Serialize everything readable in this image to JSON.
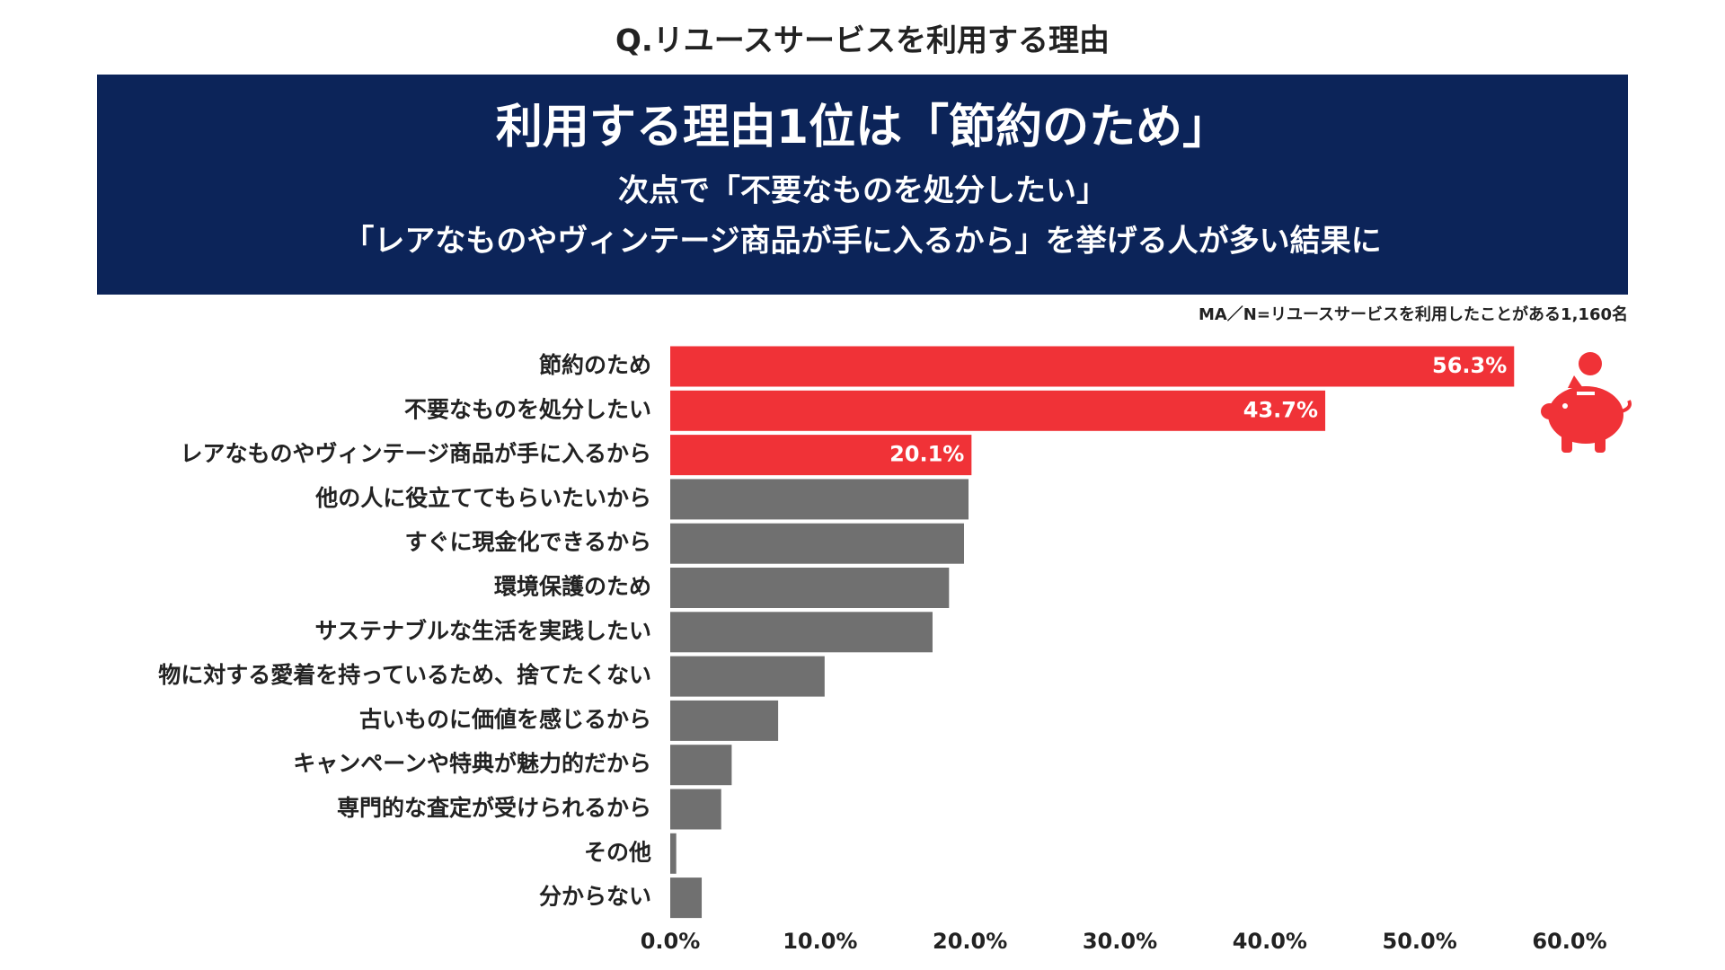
{
  "chart_data": {
    "type": "bar",
    "orientation": "horizontal",
    "title": "Q.リユースサービスを利用する理由",
    "headline": "利用する理由1位は「節約のため」",
    "subheadlines": [
      "次点で「不要なものを処分したい」",
      "「レアなものやヴィンテージ商品が手に入るから」を挙げる人が多い結果に"
    ],
    "note": "MA／N=リユースサービスを利用したことがある1,160名",
    "categories": [
      "節約のため",
      "不要なものを処分したい",
      "レアなものやヴィンテージ商品が手に入るから",
      "他の人に役立ててもらいたいから",
      "すぐに現金化できるから",
      "環境保護のため",
      "サステナブルな生活を実践したい",
      "物に対する愛着を持っているため、捨てたくない",
      "古いものに価値を感じるから",
      "キャンペーンや特典が魅力的だから",
      "専門的な査定が受けられるから",
      "その他",
      "分からない"
    ],
    "values": [
      56.3,
      43.7,
      20.1,
      19.9,
      19.6,
      18.6,
      17.5,
      10.3,
      7.2,
      4.1,
      3.4,
      0.4,
      2.1
    ],
    "value_labels": [
      "56.3%",
      "43.7%",
      "20.1%",
      null,
      null,
      null,
      null,
      null,
      null,
      null,
      null,
      null,
      null
    ],
    "colors": [
      "#f03237",
      "#f03237",
      "#f03237",
      "#707070",
      "#707070",
      "#707070",
      "#707070",
      "#707070",
      "#707070",
      "#707070",
      "#707070",
      "#707070",
      "#707070"
    ],
    "xlim": [
      0,
      60
    ],
    "xticks": [
      {
        "value": 0,
        "label": "0.0%"
      },
      {
        "value": 10,
        "label": "10.0%"
      },
      {
        "value": 20,
        "label": "20.0%"
      },
      {
        "value": 30,
        "label": "30.0%"
      },
      {
        "value": 40,
        "label": "40.0%"
      },
      {
        "value": 50,
        "label": "50.0%"
      },
      {
        "value": 60,
        "label": "60.0%"
      }
    ],
    "grid": false
  }
}
